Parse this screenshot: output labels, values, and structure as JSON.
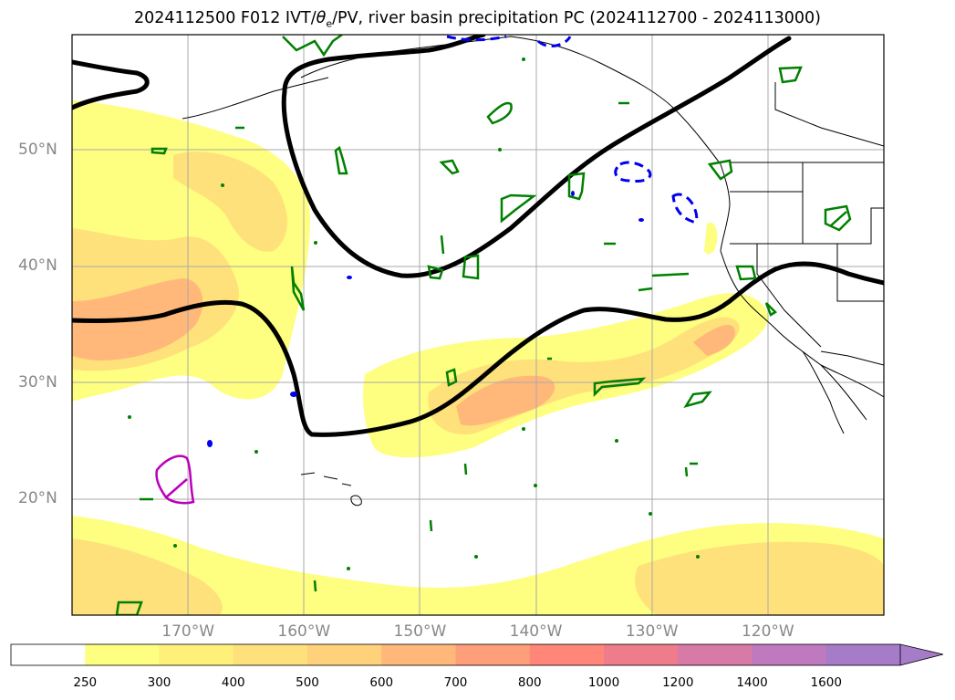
{
  "title": {
    "prefix": "2024112500 F012 IVT/",
    "theta": "θ",
    "theta_sub": "e",
    "suffix": "/PV, river basin precipitation PC (2024112700 - 2024113000)"
  },
  "map": {
    "projection": "PlateCarree",
    "lon_range": [
      -180,
      -110
    ],
    "lat_range": [
      10,
      60
    ],
    "lat_labels": [
      {
        "lat": 50,
        "text": "50°N"
      },
      {
        "lat": 40,
        "text": "40°N"
      },
      {
        "lat": 30,
        "text": "30°N"
      },
      {
        "lat": 20,
        "text": "20°N"
      }
    ],
    "lon_labels": [
      {
        "lon": -170,
        "text": "170°W"
      },
      {
        "lon": -160,
        "text": "160°W"
      },
      {
        "lon": -150,
        "text": "150°W"
      },
      {
        "lon": -140,
        "text": "140°W"
      },
      {
        "lon": -130,
        "text": "130°W"
      },
      {
        "lon": -120,
        "text": "120°W"
      }
    ],
    "gridlines": true,
    "layers": {
      "ivt_fill": "IVT shaded contours",
      "pv_contour_color": "#000000",
      "theta_e_contour_color": "#0000ee",
      "basin_precip_color": "#008000",
      "magenta_contour_color": "#bb00bb",
      "coastline_color": "#000000"
    }
  },
  "colorbar": {
    "extend": "max",
    "levels": [
      "250",
      "300",
      "400",
      "500",
      "600",
      "700",
      "800",
      "1000",
      "1200",
      "1400",
      "1600"
    ],
    "colors": [
      "#ffffff",
      "#fefe80",
      "#fff07a",
      "#fee17a",
      "#ffd17a",
      "#ffb87a",
      "#ff9f79",
      "#ff8678",
      "#ee7c8a",
      "#d77aa6",
      "#bf79bf",
      "#a67cc8"
    ]
  }
}
